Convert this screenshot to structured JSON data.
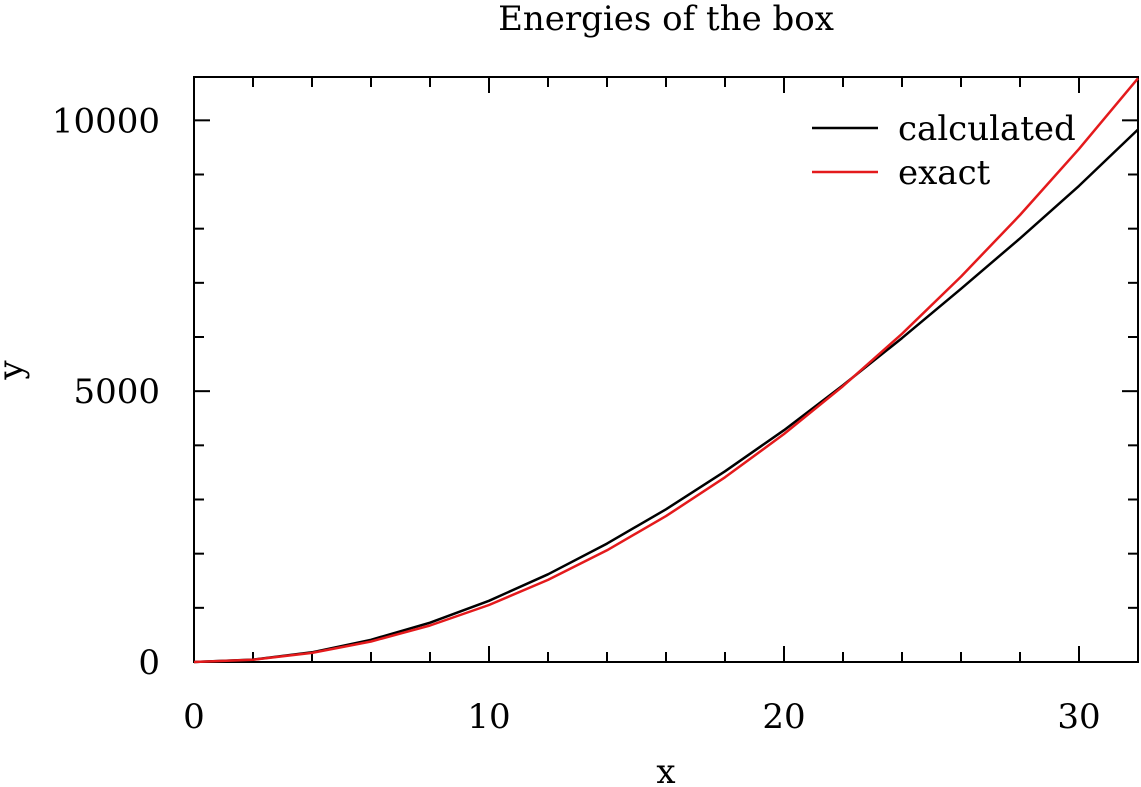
{
  "chart_data": {
    "type": "line",
    "title": "Energies of the box",
    "xlabel": "x",
    "ylabel": "y",
    "xlim": [
      0,
      32
    ],
    "ylim": [
      0,
      10800
    ],
    "x_ticks": [
      0,
      10,
      20,
      30
    ],
    "y_ticks": [
      0,
      5000,
      10000
    ],
    "x_minor_step": 2,
    "y_minor_step": 1000,
    "grid": false,
    "legend_position": "top-right",
    "series": [
      {
        "name": "calculated",
        "color": "#000000",
        "x": [
          0,
          2,
          4,
          6,
          8,
          10,
          12,
          14,
          16,
          18,
          20,
          22,
          24,
          26,
          28,
          30,
          32
        ],
        "values": [
          0,
          45,
          180,
          410,
          725,
          1130,
          1620,
          2185,
          2820,
          3520,
          4280,
          5110,
          5980,
          6890,
          7820,
          8790,
          9830
        ]
      },
      {
        "name": "exact",
        "color": "#e41a1c",
        "x": [
          0,
          2,
          4,
          6,
          8,
          10,
          12,
          14,
          16,
          18,
          20,
          22,
          24,
          26,
          28,
          30,
          32
        ],
        "values": [
          0,
          42,
          168,
          378,
          674,
          1053,
          1515,
          2063,
          2694,
          3410,
          4210,
          5094,
          6060,
          7115,
          8252,
          9473,
          10776
        ]
      }
    ]
  }
}
